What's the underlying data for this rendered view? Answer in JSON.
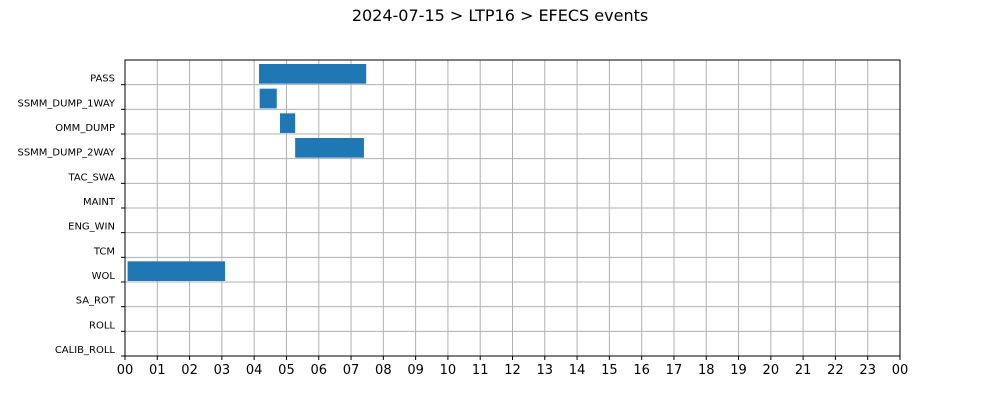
{
  "chart_data": {
    "type": "bar",
    "orientation": "horizontal-timeline",
    "title": "2024-07-15 > LTP16 > EFECS events",
    "xlabel": "",
    "ylabel": "",
    "x_unit": "hour",
    "xlim": [
      0,
      24
    ],
    "x_tick_labels": [
      "00",
      "01",
      "02",
      "03",
      "04",
      "05",
      "06",
      "07",
      "08",
      "09",
      "10",
      "11",
      "12",
      "13",
      "14",
      "15",
      "16",
      "17",
      "18",
      "19",
      "20",
      "21",
      "22",
      "23",
      "00"
    ],
    "categories": [
      "PASS",
      "SSMM_DUMP_1WAY",
      "OMM_DUMP",
      "SSMM_DUMP_2WAY",
      "TAC_SWA",
      "MAINT",
      "ENG_WIN",
      "TCM",
      "WOL",
      "SA_ROT",
      "ROLL",
      "CALIB_ROLL"
    ],
    "events": [
      {
        "category": "PASS",
        "start": 4.15,
        "end": 7.47
      },
      {
        "category": "SSMM_DUMP_1WAY",
        "start": 4.17,
        "end": 4.7
      },
      {
        "category": "OMM_DUMP",
        "start": 4.8,
        "end": 5.27
      },
      {
        "category": "SSMM_DUMP_2WAY",
        "start": 5.27,
        "end": 7.4
      },
      {
        "category": "WOL",
        "start": 0.08,
        "end": 3.1
      }
    ],
    "grid": true,
    "legend": false,
    "bar_color": "#1f77b4",
    "grid_color": "#b0b0b0",
    "axis_color": "#000000"
  }
}
